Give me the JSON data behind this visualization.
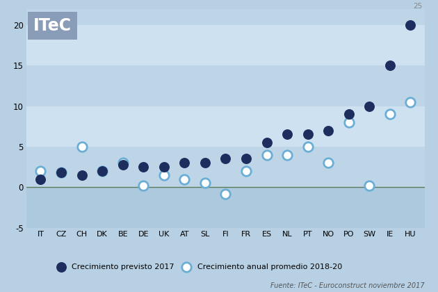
{
  "countries": [
    "IT",
    "CZ",
    "CH",
    "DK",
    "BE",
    "DE",
    "UK",
    "AT",
    "SL",
    "FI",
    "FR",
    "ES",
    "NL",
    "PT",
    "NO",
    "PO",
    "SW",
    "IE",
    "HU"
  ],
  "previsto_2017": [
    1.0,
    1.8,
    1.5,
    2.0,
    2.8,
    2.5,
    2.5,
    3.0,
    3.0,
    3.5,
    3.5,
    5.5,
    6.5,
    6.5,
    7.0,
    9.0,
    10.0,
    15.0,
    20.0
  ],
  "promedio_2018_20": [
    2.0,
    1.8,
    5.0,
    2.0,
    3.0,
    0.2,
    1.5,
    1.0,
    0.5,
    -0.8,
    2.0,
    4.0,
    4.0,
    5.0,
    3.0,
    8.0,
    0.2,
    9.0,
    10.5
  ],
  "dark_color": "#1c2d5e",
  "light_color": "#6aaed6",
  "zero_line_color": "#5a7a5a",
  "band_colors": [
    "#adc9de",
    "#bed5e8",
    "#cee1f0",
    "#bed5e8",
    "#cee1f0",
    "#bed5e8"
  ],
  "band_edges": [
    -5,
    0,
    5,
    10,
    15,
    20,
    22
  ],
  "fig_bg": "#b8d0e3",
  "title_box_color": "#8a9db8",
  "title_text": "ITeC",
  "legend_label1": "Crecimiento previsto 2017",
  "legend_label2": "Crecimiento anual promedio 2018-20",
  "source_text": "Fuente: ITeC - Euroconstruct noviembre 2017",
  "hu_label": "25",
  "marker_size": 95,
  "ymin": -5,
  "ymax": 22,
  "ylabel_ticks": [
    -5,
    0,
    5,
    10,
    15,
    20
  ]
}
